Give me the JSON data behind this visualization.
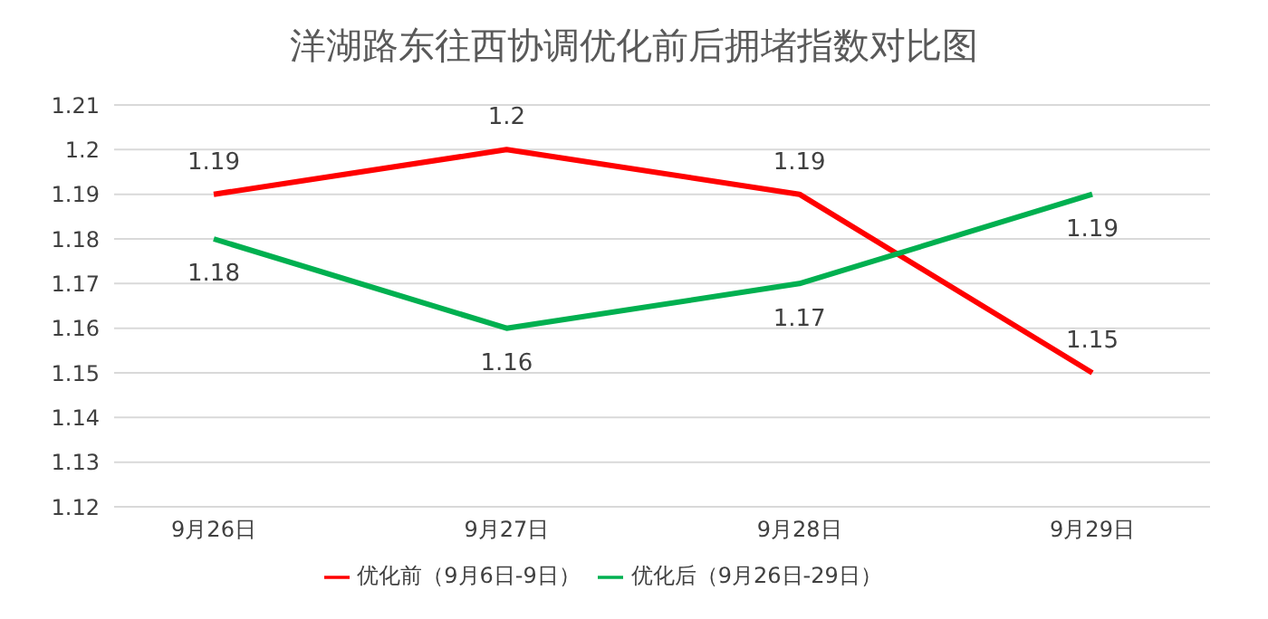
{
  "chart_data": {
    "type": "line",
    "title": "洋湖路东往西协调优化前后拥堵指数对比图",
    "categories": [
      "9月26日",
      "9月27日",
      "9月28日",
      "9月29日"
    ],
    "series": [
      {
        "name": "优化前（9月6日-9日）",
        "color": "#ff0000",
        "values": [
          1.19,
          1.2,
          1.19,
          1.15
        ]
      },
      {
        "name": "优化后（9月26日-29日）",
        "color": "#00b050",
        "values": [
          1.18,
          1.16,
          1.17,
          1.19
        ]
      }
    ],
    "ylim": [
      1.12,
      1.21
    ],
    "yticks": [
      1.12,
      1.13,
      1.14,
      1.15,
      1.16,
      1.17,
      1.18,
      1.19,
      1.2,
      1.21
    ],
    "grid": "y",
    "legend": "bottom",
    "data_labels": true,
    "marker": "none",
    "line_style": "solid"
  }
}
